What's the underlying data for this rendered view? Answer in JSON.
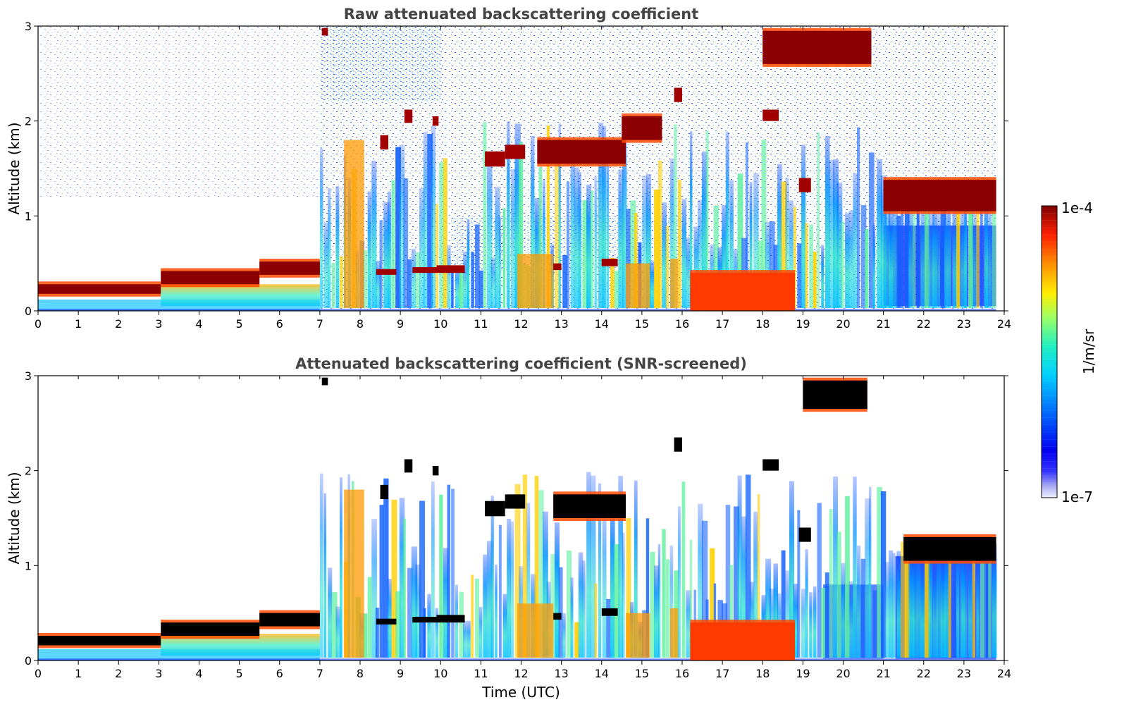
{
  "chart_data": {
    "type": "heatmap",
    "colorbar": {
      "label": "1/m/sr",
      "tick_labels": [
        "1e-4",
        "1e-7"
      ],
      "range": [
        1e-07,
        0.0001
      ],
      "scale": "log",
      "colormap": "jet"
    },
    "panels": [
      {
        "id": "raw",
        "title": "Raw attenuated backscattering coefficient",
        "xlabel": "",
        "ylabel": "Altitude (km)",
        "xlim": [
          0,
          24
        ],
        "ylim": [
          0,
          3
        ],
        "xticks": [
          "0",
          "1",
          "2",
          "3",
          "4",
          "5",
          "6",
          "7",
          "8",
          "9",
          "10",
          "11",
          "12",
          "13",
          "14",
          "15",
          "16",
          "17",
          "18",
          "19",
          "20",
          "21",
          "22",
          "23",
          "24"
        ],
        "yticks": [
          "0",
          "1",
          "2",
          "3"
        ],
        "screened": false,
        "layers": [
          {
            "t_start": 0,
            "t_end": 3.05,
            "z_base": 0.18,
            "z_top": 0.28,
            "level": "high"
          },
          {
            "t_start": 3.05,
            "t_end": 5.5,
            "z_base": 0.28,
            "z_top": 0.42,
            "level": "high"
          },
          {
            "t_start": 5.5,
            "t_end": 7.0,
            "z_base": 0.38,
            "z_top": 0.52,
            "level": "high"
          },
          {
            "t_start": 12.4,
            "t_end": 14.6,
            "z_base": 1.55,
            "z_top": 1.8,
            "level": "high"
          },
          {
            "t_start": 14.5,
            "t_end": 15.5,
            "z_base": 1.8,
            "z_top": 2.05,
            "level": "high"
          },
          {
            "t_start": 18.0,
            "t_end": 20.7,
            "z_base": 2.6,
            "z_top": 2.95,
            "level": "high"
          },
          {
            "t_start": 21.0,
            "t_end": 23.8,
            "z_base": 1.05,
            "z_top": 1.38,
            "level": "high"
          },
          {
            "t_start": 16.2,
            "t_end": 18.8,
            "z_base": 0.0,
            "z_top": 0.4,
            "level": "medium"
          }
        ]
      },
      {
        "id": "screened",
        "title": "Attenuated backscattering coefficient (SNR-screened)",
        "xlabel": "Time (UTC)",
        "ylabel": "Altitude (km)",
        "xlim": [
          0,
          24
        ],
        "ylim": [
          0,
          3
        ],
        "xticks": [
          "0",
          "1",
          "2",
          "3",
          "4",
          "5",
          "6",
          "7",
          "8",
          "9",
          "10",
          "11",
          "12",
          "13",
          "14",
          "15",
          "16",
          "17",
          "18",
          "19",
          "20",
          "21",
          "22",
          "23",
          "24"
        ],
        "yticks": [
          "0",
          "1",
          "2",
          "3"
        ],
        "screened": true,
        "layers": [
          {
            "t_start": 0,
            "t_end": 3.05,
            "z_base": 0.16,
            "z_top": 0.26,
            "level": "saturated"
          },
          {
            "t_start": 3.05,
            "t_end": 5.5,
            "z_base": 0.26,
            "z_top": 0.4,
            "level": "saturated"
          },
          {
            "t_start": 5.5,
            "t_end": 7.0,
            "z_base": 0.36,
            "z_top": 0.5,
            "level": "saturated"
          },
          {
            "t_start": 12.8,
            "t_end": 14.6,
            "z_base": 1.5,
            "z_top": 1.75,
            "level": "saturated"
          },
          {
            "t_start": 19.0,
            "t_end": 20.6,
            "z_base": 2.65,
            "z_top": 2.95,
            "level": "saturated"
          },
          {
            "t_start": 21.5,
            "t_end": 23.8,
            "z_base": 1.05,
            "z_top": 1.3,
            "level": "saturated"
          },
          {
            "t_start": 16.2,
            "t_end": 18.8,
            "z_base": 0.0,
            "z_top": 0.4,
            "level": "medium"
          }
        ]
      }
    ]
  }
}
